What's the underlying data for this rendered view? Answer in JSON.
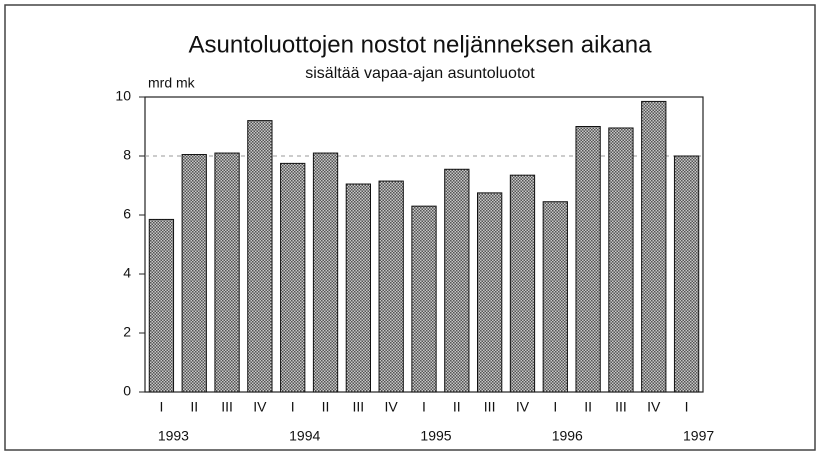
{
  "chart_data": {
    "type": "bar",
    "title": "Asuntoluottojen nostot neljänneksen aikana",
    "subtitle": "sisältää vapaa-ajan asuntoluotot",
    "ylabel": "mrd mk",
    "categories": [
      "I",
      "II",
      "III",
      "IV",
      "I",
      "II",
      "III",
      "IV",
      "I",
      "II",
      "III",
      "IV",
      "I",
      "II",
      "III",
      "IV",
      "I"
    ],
    "years": [
      "1993",
      null,
      null,
      null,
      "1994",
      null,
      null,
      null,
      "1995",
      null,
      null,
      null,
      "1996",
      null,
      null,
      null,
      "1997"
    ],
    "values": [
      5.85,
      8.05,
      8.1,
      9.2,
      7.75,
      8.1,
      7.05,
      7.15,
      6.3,
      7.55,
      6.75,
      7.35,
      6.45,
      9.0,
      8.95,
      9.85,
      8.0
    ],
    "color": "#9a9a9a",
    "ylim": [
      0,
      10
    ],
    "yticks": [
      0,
      2,
      4,
      6,
      8,
      10
    ],
    "reference_line": 8
  }
}
